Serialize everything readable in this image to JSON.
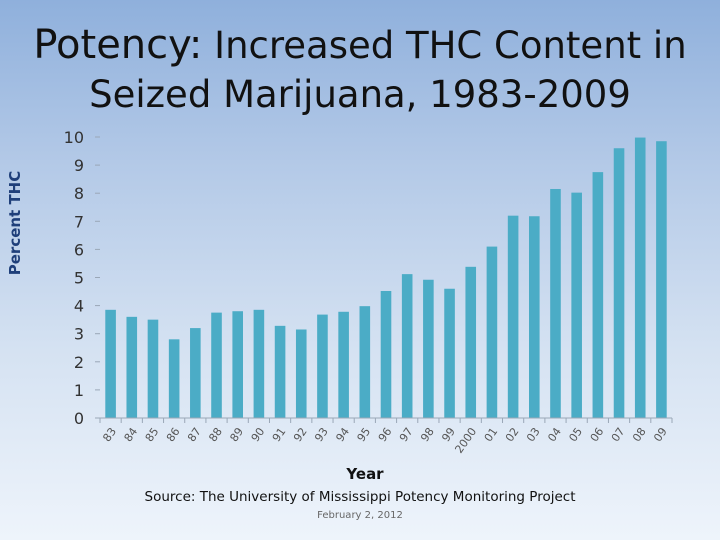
{
  "slide": {
    "title_emph": "Potency:",
    "title_rest": " Increased THC Content in",
    "title_line2": "Seized Marijuana, 1983-2009",
    "source": "Source: The University of Mississippi Potency Monitoring Project",
    "date": "February 2, 2012"
  },
  "chart_data": {
    "type": "bar",
    "title": "Potency: Increased THC Content in Seized Marijuana, 1983-2009",
    "xlabel": "Year",
    "ylabel": "Percent THC",
    "ylim": [
      0,
      10
    ],
    "yticks": [
      0,
      1,
      2,
      3,
      4,
      5,
      6,
      7,
      8,
      9,
      10
    ],
    "grid": false,
    "legend": "none",
    "bar_color": "#4bacc6",
    "categories": [
      "83",
      "84",
      "85",
      "86",
      "87",
      "88",
      "89",
      "90",
      "91",
      "92",
      "93",
      "94",
      "95",
      "96",
      "97",
      "98",
      "99",
      "2000",
      "01",
      "02",
      "03",
      "04",
      "05",
      "06",
      "07",
      "08",
      "09"
    ],
    "values": [
      3.85,
      3.6,
      3.5,
      2.8,
      3.2,
      3.75,
      3.8,
      3.85,
      3.28,
      3.15,
      3.68,
      3.78,
      3.98,
      4.52,
      5.12,
      4.92,
      4.6,
      5.38,
      6.1,
      7.2,
      7.18,
      8.15,
      8.02,
      8.75,
      9.6,
      9.98,
      9.85
    ]
  }
}
